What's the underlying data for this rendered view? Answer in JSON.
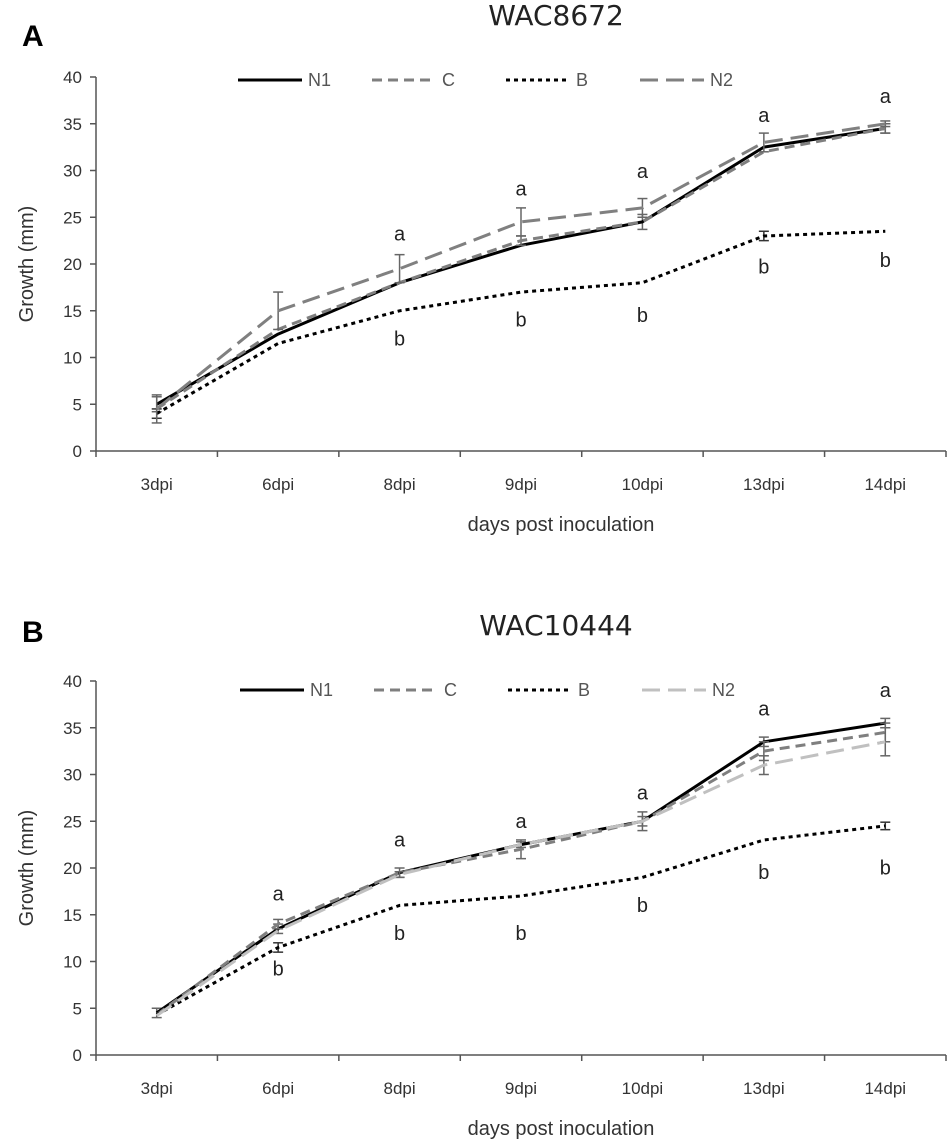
{
  "chart_data": [
    {
      "type": "line",
      "panel_label": "A",
      "title": "WAC8672",
      "xlabel": "days post inoculation",
      "ylabel": "Growth (mm)",
      "categories": [
        "3dpi",
        "6dpi",
        "8dpi",
        "9dpi",
        "10dpi",
        "13dpi",
        "14dpi"
      ],
      "ylim": [
        0,
        40
      ],
      "yticks": [
        "0",
        "5",
        "10",
        "15",
        "20",
        "25",
        "30",
        "35",
        "40"
      ],
      "legend_position": "top",
      "series": [
        {
          "name": "N1",
          "values": [
            5,
            12.5,
            18,
            22,
            24.5,
            32.5,
            34.5
          ],
          "errors": [
            0.8,
            0,
            0,
            0,
            0.8,
            0,
            0.5
          ],
          "color": "#000000",
          "dash": "solid"
        },
        {
          "name": "C",
          "values": [
            4.5,
            13,
            18,
            22.5,
            24.5,
            32,
            34.5
          ],
          "errors": [
            0,
            0,
            0,
            0.5,
            0,
            0,
            0.5
          ],
          "color": "#7f7f7f",
          "dash": "dash"
        },
        {
          "name": "B",
          "values": [
            4,
            11.5,
            15,
            17,
            18,
            23,
            23.5
          ],
          "errors": [
            0.5,
            0,
            0,
            0,
            0,
            0.5,
            0
          ],
          "color": "#000000",
          "dash": "dot"
        },
        {
          "name": "N2",
          "values": [
            4.5,
            15,
            19.5,
            24.5,
            26,
            33,
            35
          ],
          "errors": [
            1.5,
            2,
            1.5,
            1.5,
            1,
            1,
            0.3
          ],
          "color": "#808080",
          "dash": "longdash"
        }
      ],
      "annotations": [
        {
          "text": "a",
          "x": "8dpi",
          "y": 22.5
        },
        {
          "text": "b",
          "x": "8dpi",
          "y": 11.3
        },
        {
          "text": "a",
          "x": "9dpi",
          "y": 27.3
        },
        {
          "text": "b",
          "x": "9dpi",
          "y": 13.3
        },
        {
          "text": "a",
          "x": "10dpi",
          "y": 29.2
        },
        {
          "text": "b",
          "x": "10dpi",
          "y": 13.8
        },
        {
          "text": "a",
          "x": "13dpi",
          "y": 35.2
        },
        {
          "text": "b",
          "x": "13dpi",
          "y": 19
        },
        {
          "text": "a",
          "x": "14dpi",
          "y": 37.2
        },
        {
          "text": "b",
          "x": "14dpi",
          "y": 19.7
        }
      ]
    },
    {
      "type": "line",
      "panel_label": "B",
      "title": "WAC10444",
      "xlabel": "days post inoculation",
      "ylabel": "Growth (mm)",
      "categories": [
        "3dpi",
        "6dpi",
        "8dpi",
        "9dpi",
        "10dpi",
        "13dpi",
        "14dpi"
      ],
      "ylim": [
        0,
        40
      ],
      "yticks": [
        "0",
        "5",
        "10",
        "15",
        "20",
        "25",
        "30",
        "35",
        "40"
      ],
      "legend_position": "top",
      "series": [
        {
          "name": "N1",
          "values": [
            4.5,
            13.5,
            19.5,
            22.5,
            25,
            33.5,
            35.5
          ],
          "errors": [
            0.5,
            0.5,
            0.5,
            0.3,
            0.5,
            0.5,
            0.5
          ],
          "color": "#000000",
          "dash": "solid"
        },
        {
          "name": "C",
          "values": [
            4.3,
            14,
            19.5,
            22,
            25,
            32.5,
            34.5
          ],
          "errors": [
            0,
            0.5,
            0,
            1,
            1,
            1,
            1
          ],
          "color": "#7f7f7f",
          "dash": "dash"
        },
        {
          "name": "B",
          "values": [
            4.3,
            11.5,
            16,
            17,
            19,
            23,
            24.5
          ],
          "errors": [
            0,
            0.5,
            0,
            0,
            0,
            0,
            0.4
          ],
          "color": "#000000",
          "dash": "dot"
        },
        {
          "name": "N2",
          "values": [
            4.2,
            13.3,
            19.3,
            22.5,
            25,
            31,
            33.5
          ],
          "errors": [
            0,
            0,
            0.3,
            0,
            0,
            1,
            1.5
          ],
          "color": "#c0c0c0",
          "dash": "longdash"
        }
      ],
      "annotations": [
        {
          "text": "a",
          "x": "6dpi",
          "y": 16.5
        },
        {
          "text": "b",
          "x": "6dpi",
          "y": 8.5
        },
        {
          "text": "a",
          "x": "8dpi",
          "y": 22.3
        },
        {
          "text": "b",
          "x": "8dpi",
          "y": 12.3
        },
        {
          "text": "a",
          "x": "9dpi",
          "y": 24.3
        },
        {
          "text": "b",
          "x": "9dpi",
          "y": 12.3
        },
        {
          "text": "a",
          "x": "10dpi",
          "y": 27.3
        },
        {
          "text": "b",
          "x": "10dpi",
          "y": 15.3
        },
        {
          "text": "a",
          "x": "13dpi",
          "y": 36.3
        },
        {
          "text": "b",
          "x": "13dpi",
          "y": 18.8
        },
        {
          "text": "a",
          "x": "14dpi",
          "y": 38.3
        },
        {
          "text": "b",
          "x": "14dpi",
          "y": 19.3
        }
      ]
    }
  ]
}
